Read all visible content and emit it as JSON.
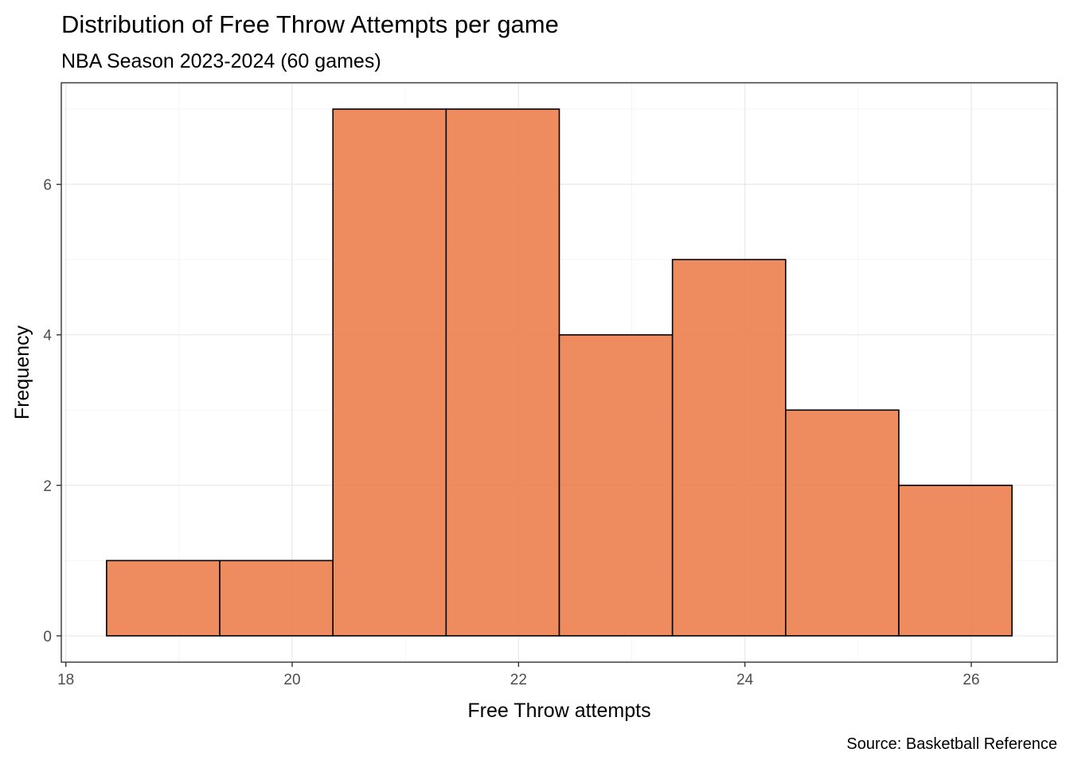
{
  "chart_data": {
    "type": "bar",
    "subtype": "histogram",
    "title": "Distribution of Free Throw Attempts per game",
    "subtitle": "NBA Season 2023-2024 (60 games)",
    "xlabel": "Free Throw attempts",
    "ylabel": "Frequency",
    "caption": "Source: Basketball Reference",
    "bins": [
      {
        "start": 18.36,
        "end": 19.36,
        "count": 1
      },
      {
        "start": 19.36,
        "end": 20.36,
        "count": 1
      },
      {
        "start": 20.36,
        "end": 21.36,
        "count": 7
      },
      {
        "start": 21.36,
        "end": 22.36,
        "count": 7
      },
      {
        "start": 22.36,
        "end": 23.36,
        "count": 4
      },
      {
        "start": 23.36,
        "end": 24.36,
        "count": 5
      },
      {
        "start": 24.36,
        "end": 25.36,
        "count": 3
      },
      {
        "start": 25.36,
        "end": 26.36,
        "count": 2
      }
    ],
    "xlim": [
      17.96,
      26.76
    ],
    "ylim": [
      -0.35,
      7.35
    ],
    "x_ticks": [
      18,
      20,
      22,
      24,
      26
    ],
    "y_ticks": [
      0,
      2,
      4,
      6
    ],
    "x_minor_ticks": [
      19,
      21,
      23,
      25
    ],
    "y_minor_ticks": [
      1,
      3,
      5,
      7
    ],
    "grid": true,
    "theme": "bw",
    "colors": {
      "bar_fill": "#EC7F4E",
      "bar_stroke": "#000000",
      "panel_border": "#333333",
      "grid_major": "#EBEBEB",
      "grid_minor": "#F5F5F5"
    }
  }
}
